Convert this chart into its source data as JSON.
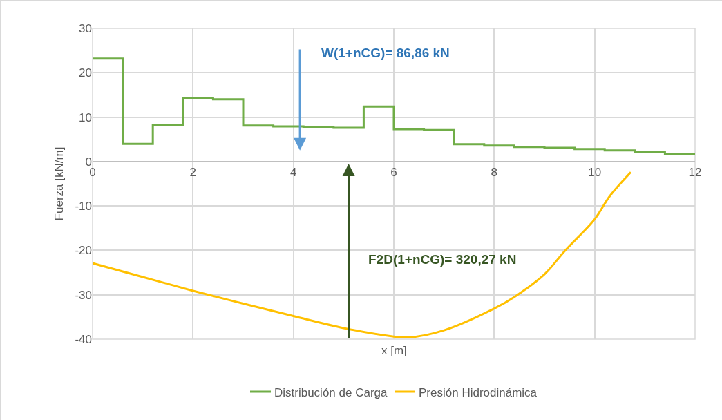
{
  "chart_data": {
    "type": "line",
    "xlabel": "x [m]",
    "ylabel": "Fuerza [kN/m]",
    "annotations": [
      "W(1+nCG)= 86,86 kN",
      "F2D(1+nCG)= 320,27 kN"
    ],
    "series": [
      {
        "name": "Distribución de Carga",
        "type": "step",
        "color": "#70ad47",
        "x": [
          0,
          0.6,
          1.2,
          1.8,
          2.4,
          3.0,
          3.6,
          4.2,
          4.8,
          5.4,
          6.0,
          6.6,
          7.2,
          7.8,
          8.4,
          9.0,
          9.6,
          10.2,
          10.8,
          11.4,
          12
        ],
        "values": [
          23.2,
          4.0,
          8.2,
          14.2,
          14.0,
          8.1,
          7.9,
          7.8,
          7.6,
          12.4,
          7.3,
          7.1,
          3.9,
          3.6,
          3.3,
          3.1,
          2.8,
          2.5,
          2.2,
          1.7,
          1.7
        ]
      },
      {
        "name": "Presión Hidrodinámica",
        "color": "#ffc000",
        "x": [
          0,
          1,
          2,
          3,
          4,
          5,
          6,
          6.3,
          7,
          8,
          8.4,
          9,
          9.4,
          10,
          10.3,
          10.72
        ],
        "values": [
          -22.9,
          -26.0,
          -29.1,
          -32.0,
          -34.8,
          -37.5,
          -39.4,
          -39.6,
          -38.0,
          -33.1,
          -30.5,
          -25.4,
          -20.2,
          -13.0,
          -7.8,
          -2.4
        ]
      }
    ],
    "xlim": [
      0,
      12
    ],
    "xticks": [
      0,
      2,
      4,
      6,
      8,
      10,
      12
    ],
    "ylim": [
      -40,
      30
    ],
    "yticks": [
      -40,
      -30,
      -20,
      -10,
      0,
      10,
      20,
      30
    ],
    "grid": true,
    "legend": "bottom",
    "marker": "none"
  }
}
